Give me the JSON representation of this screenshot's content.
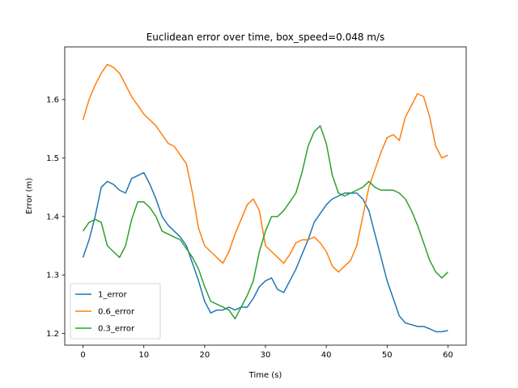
{
  "chart_data": {
    "type": "line",
    "title": "Euclidean error over time, box_speed=0.048 m/s",
    "xlabel": "Time (s)",
    "ylabel": "Error (m)",
    "xlim": [
      -3,
      63
    ],
    "ylim": [
      1.18,
      1.69
    ],
    "xticks": [
      0,
      10,
      20,
      30,
      40,
      50,
      60
    ],
    "yticks": [
      1.2,
      1.3,
      1.4,
      1.5,
      1.6
    ],
    "legend": "lower-left",
    "grid": false,
    "series": [
      {
        "name": "1_error",
        "color": "#1f77b4",
        "x": [
          0,
          1,
          2,
          3,
          4,
          5,
          6,
          7,
          8,
          9,
          10,
          11,
          12,
          13,
          14,
          15,
          16,
          17,
          18,
          19,
          20,
          21,
          22,
          23,
          24,
          25,
          26,
          27,
          28,
          29,
          30,
          31,
          32,
          33,
          34,
          35,
          36,
          37,
          38,
          39,
          40,
          41,
          42,
          43,
          44,
          45,
          46,
          47,
          48,
          49,
          50,
          51,
          52,
          53,
          54,
          55,
          56,
          57,
          58,
          59,
          60
        ],
        "y": [
          1.33,
          1.36,
          1.4,
          1.45,
          1.46,
          1.455,
          1.445,
          1.44,
          1.465,
          1.47,
          1.475,
          1.455,
          1.43,
          1.4,
          1.385,
          1.375,
          1.365,
          1.35,
          1.32,
          1.29,
          1.255,
          1.235,
          1.24,
          1.24,
          1.245,
          1.24,
          1.245,
          1.245,
          1.26,
          1.28,
          1.29,
          1.295,
          1.275,
          1.27,
          1.29,
          1.31,
          1.335,
          1.36,
          1.39,
          1.405,
          1.42,
          1.43,
          1.435,
          1.44,
          1.44,
          1.44,
          1.43,
          1.41,
          1.37,
          1.33,
          1.29,
          1.26,
          1.23,
          1.218,
          1.215,
          1.212,
          1.212,
          1.208,
          1.203,
          1.203,
          1.205
        ]
      },
      {
        "name": "0.6_error",
        "color": "#ff7f0e",
        "x": [
          0,
          1,
          2,
          3,
          4,
          5,
          6,
          7,
          8,
          9,
          10,
          11,
          12,
          13,
          14,
          15,
          16,
          17,
          18,
          19,
          20,
          21,
          22,
          23,
          24,
          25,
          26,
          27,
          28,
          29,
          30,
          31,
          32,
          33,
          34,
          35,
          36,
          37,
          38,
          39,
          40,
          41,
          42,
          43,
          44,
          45,
          46,
          47,
          48,
          49,
          50,
          51,
          52,
          53,
          54,
          55,
          56,
          57,
          58,
          59,
          60
        ],
        "y": [
          1.565,
          1.6,
          1.625,
          1.645,
          1.66,
          1.655,
          1.645,
          1.625,
          1.605,
          1.59,
          1.575,
          1.565,
          1.555,
          1.54,
          1.525,
          1.52,
          1.505,
          1.49,
          1.44,
          1.38,
          1.35,
          1.34,
          1.33,
          1.32,
          1.34,
          1.37,
          1.395,
          1.42,
          1.43,
          1.41,
          1.35,
          1.34,
          1.33,
          1.32,
          1.335,
          1.355,
          1.36,
          1.36,
          1.365,
          1.355,
          1.34,
          1.315,
          1.305,
          1.315,
          1.325,
          1.35,
          1.4,
          1.45,
          1.48,
          1.51,
          1.535,
          1.54,
          1.53,
          1.57,
          1.59,
          1.61,
          1.605,
          1.57,
          1.52,
          1.5,
          1.505
        ]
      },
      {
        "name": "0.3_error",
        "color": "#2ca02c",
        "x": [
          0,
          1,
          2,
          3,
          4,
          5,
          6,
          7,
          8,
          9,
          10,
          11,
          12,
          13,
          14,
          15,
          16,
          17,
          18,
          19,
          20,
          21,
          22,
          23,
          24,
          25,
          26,
          27,
          28,
          29,
          30,
          31,
          32,
          33,
          34,
          35,
          36,
          37,
          38,
          39,
          40,
          41,
          42,
          43,
          44,
          45,
          46,
          47,
          48,
          49,
          50,
          51,
          52,
          53,
          54,
          55,
          56,
          57,
          58,
          59,
          60
        ],
        "y": [
          1.375,
          1.39,
          1.395,
          1.39,
          1.35,
          1.34,
          1.33,
          1.35,
          1.395,
          1.425,
          1.425,
          1.415,
          1.4,
          1.375,
          1.37,
          1.365,
          1.36,
          1.345,
          1.33,
          1.31,
          1.28,
          1.255,
          1.25,
          1.245,
          1.24,
          1.225,
          1.245,
          1.265,
          1.29,
          1.34,
          1.375,
          1.4,
          1.4,
          1.41,
          1.425,
          1.44,
          1.475,
          1.52,
          1.545,
          1.555,
          1.525,
          1.47,
          1.44,
          1.435,
          1.44,
          1.445,
          1.45,
          1.46,
          1.45,
          1.445,
          1.445,
          1.445,
          1.44,
          1.43,
          1.41,
          1.385,
          1.355,
          1.325,
          1.305,
          1.295,
          1.305
        ]
      }
    ]
  }
}
